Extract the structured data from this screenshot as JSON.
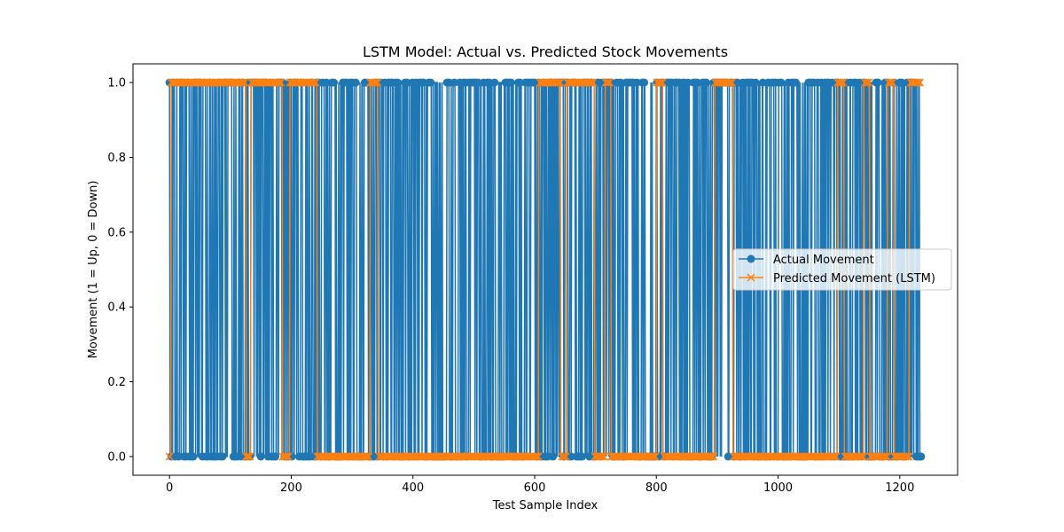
{
  "chart_data": {
    "type": "line",
    "title": "LSTM Model: Actual vs. Predicted Stock Movements",
    "xlabel": "Test Sample Index",
    "ylabel": "Movement (1 = Up, 0 = Down)",
    "xlim": [
      -60,
      1295
    ],
    "ylim": [
      -0.05,
      1.05
    ],
    "xticks": [
      0,
      200,
      400,
      600,
      800,
      1000,
      1200
    ],
    "yticks": [
      0.0,
      0.2,
      0.4,
      0.6,
      0.8,
      1.0
    ],
    "grid": false,
    "legend_position": "center-right",
    "n_samples": 1236,
    "series": [
      {
        "name": "Actual Movement",
        "color": "#1f77b4",
        "marker": "circle",
        "values_description": "binary 0/1 per sample, rapidly alternating",
        "first_value": 1,
        "last_value": 0,
        "pattern_seed": 7
      },
      {
        "name": "Predicted Movement (LSTM)",
        "color": "#ff7f0e",
        "marker": "x",
        "segments": [
          {
            "start": 0,
            "end": 2,
            "value": 0
          },
          {
            "start": 3,
            "end": 125,
            "value": 1
          },
          {
            "start": 126,
            "end": 133,
            "value": 0
          },
          {
            "start": 134,
            "end": 185,
            "value": 1
          },
          {
            "start": 186,
            "end": 197,
            "value": 0
          },
          {
            "start": 198,
            "end": 242,
            "value": 1
          },
          {
            "start": 243,
            "end": 329,
            "value": 0
          },
          {
            "start": 330,
            "end": 342,
            "value": 1
          },
          {
            "start": 343,
            "end": 606,
            "value": 0
          },
          {
            "start": 607,
            "end": 642,
            "value": 1
          },
          {
            "start": 643,
            "end": 652,
            "value": 0
          },
          {
            "start": 653,
            "end": 698,
            "value": 1
          },
          {
            "start": 699,
            "end": 715,
            "value": 0
          },
          {
            "start": 716,
            "end": 725,
            "value": 1
          },
          {
            "start": 726,
            "end": 800,
            "value": 0
          },
          {
            "start": 801,
            "end": 810,
            "value": 1
          },
          {
            "start": 811,
            "end": 895,
            "value": 0
          },
          {
            "start": 896,
            "end": 925,
            "value": 1
          },
          {
            "start": 926,
            "end": 1097,
            "value": 0
          },
          {
            "start": 1098,
            "end": 1108,
            "value": 1
          },
          {
            "start": 1109,
            "end": 1140,
            "value": 0
          },
          {
            "start": 1141,
            "end": 1150,
            "value": 1
          },
          {
            "start": 1151,
            "end": 1179,
            "value": 0
          },
          {
            "start": 1180,
            "end": 1190,
            "value": 1
          },
          {
            "start": 1191,
            "end": 1215,
            "value": 0
          },
          {
            "start": 1216,
            "end": 1235,
            "value": 1
          }
        ]
      }
    ]
  }
}
